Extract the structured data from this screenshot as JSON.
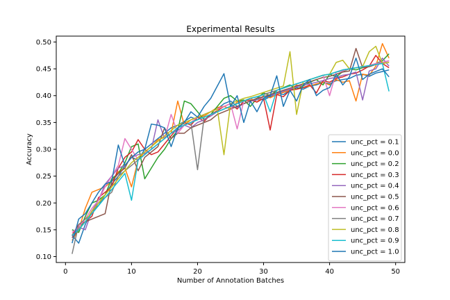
{
  "chart_data": {
    "type": "line",
    "title": "Experimental Results",
    "xlabel": "Number of Annotation Batches",
    "ylabel": "Accuracy",
    "xlim": [
      -1.4,
      51.4
    ],
    "ylim": [
      0.089,
      0.511
    ],
    "xticks": [
      0,
      10,
      20,
      30,
      40,
      50
    ],
    "yticks": [
      0.1,
      0.15,
      0.2,
      0.25,
      0.3,
      0.35,
      0.4,
      0.45,
      0.5
    ],
    "ytick_labels": [
      "0.10",
      "0.15",
      "0.20",
      "0.25",
      "0.30",
      "0.35",
      "0.40",
      "0.45",
      "0.50"
    ],
    "grid": false,
    "legend_position": "lower-right",
    "x": [
      1,
      2,
      3,
      4,
      5,
      6,
      7,
      8,
      9,
      10,
      11,
      12,
      13,
      14,
      15,
      16,
      17,
      18,
      19,
      20,
      21,
      22,
      23,
      24,
      25,
      26,
      27,
      28,
      29,
      30,
      31,
      32,
      33,
      34,
      35,
      36,
      37,
      38,
      39,
      40,
      41,
      42,
      43,
      44,
      45,
      46,
      47,
      48,
      49
    ],
    "series": [
      {
        "name": "unc_pct = 0.1",
        "color": "#1f77b4",
        "values": [
          0.14,
          0.125,
          0.16,
          0.185,
          0.195,
          0.215,
          0.235,
          0.25,
          0.27,
          0.285,
          0.28,
          0.3,
          0.31,
          0.32,
          0.33,
          0.34,
          0.345,
          0.352,
          0.36,
          0.355,
          0.365,
          0.37,
          0.375,
          0.385,
          0.39,
          0.38,
          0.385,
          0.39,
          0.395,
          0.392,
          0.398,
          0.405,
          0.402,
          0.41,
          0.415,
          0.412,
          0.418,
          0.42,
          0.425,
          0.422,
          0.428,
          0.43,
          0.432,
          0.438,
          0.44,
          0.436,
          0.442,
          0.445,
          0.448
        ]
      },
      {
        "name": "unc_pct = 0.0",
        "color": "#ff7f0e",
        "values": [
          0.13,
          0.15,
          0.19,
          0.22,
          0.225,
          0.23,
          0.24,
          0.258,
          0.265,
          0.23,
          0.28,
          0.295,
          0.305,
          0.318,
          0.322,
          0.33,
          0.39,
          0.345,
          0.355,
          0.36,
          0.362,
          0.37,
          0.378,
          0.38,
          0.375,
          0.388,
          0.39,
          0.395,
          0.388,
          0.4,
          0.396,
          0.402,
          0.406,
          0.41,
          0.42,
          0.415,
          0.418,
          0.422,
          0.425,
          0.42,
          0.43,
          0.425,
          0.428,
          0.39,
          0.44,
          0.438,
          0.455,
          0.497,
          0.47
        ]
      },
      {
        "name": "unc_pct = 0.2",
        "color": "#2ca02c",
        "values": [
          0.15,
          0.145,
          0.175,
          0.2,
          0.205,
          0.215,
          0.245,
          0.255,
          0.275,
          0.305,
          0.31,
          0.245,
          0.265,
          0.285,
          0.3,
          0.32,
          0.335,
          0.39,
          0.385,
          0.37,
          0.355,
          0.365,
          0.38,
          0.395,
          0.4,
          0.39,
          0.392,
          0.38,
          0.395,
          0.405,
          0.4,
          0.41,
          0.415,
          0.42,
          0.412,
          0.418,
          0.425,
          0.43,
          0.42,
          0.44,
          0.435,
          0.445,
          0.45,
          0.448,
          0.452,
          0.455,
          0.46,
          0.465,
          0.478
        ]
      },
      {
        "name": "unc_pct = 0.3",
        "color": "#d62728",
        "values": [
          0.14,
          0.16,
          0.165,
          0.175,
          0.21,
          0.22,
          0.23,
          0.265,
          0.285,
          0.295,
          0.318,
          0.3,
          0.29,
          0.295,
          0.31,
          0.325,
          0.34,
          0.35,
          0.345,
          0.36,
          0.352,
          0.365,
          0.372,
          0.38,
          0.385,
          0.375,
          0.39,
          0.392,
          0.388,
          0.395,
          0.336,
          0.402,
          0.398,
          0.41,
          0.412,
          0.415,
          0.42,
          0.405,
          0.428,
          0.425,
          0.432,
          0.435,
          0.44,
          0.442,
          0.448,
          0.455,
          0.475,
          0.46,
          0.452
        ]
      },
      {
        "name": "unc_pct = 0.4",
        "color": "#9467bd",
        "values": [
          0.135,
          0.155,
          0.15,
          0.185,
          0.205,
          0.235,
          0.25,
          0.265,
          0.27,
          0.285,
          0.29,
          0.292,
          0.3,
          0.355,
          0.32,
          0.33,
          0.335,
          0.345,
          0.34,
          0.35,
          0.355,
          0.362,
          0.37,
          0.375,
          0.38,
          0.378,
          0.385,
          0.39,
          0.392,
          0.398,
          0.4,
          0.404,
          0.408,
          0.412,
          0.416,
          0.42,
          0.422,
          0.425,
          0.428,
          0.432,
          0.434,
          0.438,
          0.44,
          0.444,
          0.392,
          0.446,
          0.45,
          0.47,
          0.455
        ]
      },
      {
        "name": "unc_pct = 0.5",
        "color": "#8c564b",
        "values": [
          0.135,
          0.15,
          0.165,
          0.17,
          0.175,
          0.18,
          0.24,
          0.255,
          0.265,
          0.29,
          0.26,
          0.285,
          0.295,
          0.305,
          0.34,
          0.32,
          0.33,
          0.33,
          0.34,
          0.345,
          0.35,
          0.355,
          0.365,
          0.37,
          0.375,
          0.38,
          0.385,
          0.39,
          0.395,
          0.398,
          0.402,
          0.406,
          0.41,
          0.414,
          0.418,
          0.422,
          0.426,
          0.43,
          0.434,
          0.436,
          0.44,
          0.444,
          0.446,
          0.488,
          0.452,
          0.454,
          0.458,
          0.462,
          0.465
        ]
      },
      {
        "name": "unc_pct = 0.6",
        "color": "#e377c2",
        "values": [
          0.145,
          0.155,
          0.17,
          0.19,
          0.205,
          0.23,
          0.25,
          0.27,
          0.32,
          0.3,
          0.28,
          0.29,
          0.3,
          0.31,
          0.32,
          0.365,
          0.33,
          0.345,
          0.35,
          0.36,
          0.365,
          0.37,
          0.375,
          0.38,
          0.385,
          0.338,
          0.39,
          0.395,
          0.398,
          0.402,
          0.406,
          0.41,
          0.414,
          0.418,
          0.422,
          0.426,
          0.43,
          0.434,
          0.438,
          0.4,
          0.444,
          0.446,
          0.45,
          0.452,
          0.454,
          0.456,
          0.46,
          0.462,
          0.465
        ]
      },
      {
        "name": "unc_pct = 0.7",
        "color": "#7f7f7f",
        "values": [
          0.105,
          0.16,
          0.17,
          0.18,
          0.2,
          0.21,
          0.22,
          0.25,
          0.26,
          0.27,
          0.28,
          0.29,
          0.3,
          0.31,
          0.32,
          0.33,
          0.34,
          0.345,
          0.35,
          0.262,
          0.36,
          0.365,
          0.37,
          0.375,
          0.38,
          0.385,
          0.39,
          0.395,
          0.398,
          0.402,
          0.406,
          0.41,
          0.414,
          0.418,
          0.422,
          0.426,
          0.43,
          0.434,
          0.438,
          0.44,
          0.444,
          0.448,
          0.45,
          0.452,
          0.454,
          0.456,
          0.458,
          0.46,
          0.462
        ]
      },
      {
        "name": "unc_pct = 0.8",
        "color": "#bcbd22",
        "values": [
          0.14,
          0.15,
          0.165,
          0.185,
          0.2,
          0.215,
          0.23,
          0.245,
          0.26,
          0.275,
          0.285,
          0.295,
          0.305,
          0.315,
          0.325,
          0.335,
          0.345,
          0.35,
          0.355,
          0.36,
          0.365,
          0.37,
          0.375,
          0.29,
          0.385,
          0.39,
          0.395,
          0.398,
          0.402,
          0.406,
          0.41,
          0.414,
          0.418,
          0.482,
          0.365,
          0.426,
          0.43,
          0.434,
          0.438,
          0.44,
          0.462,
          0.466,
          0.45,
          0.452,
          0.454,
          0.482,
          0.492,
          0.46,
          0.462
        ]
      },
      {
        "name": "unc_pct = 0.9",
        "color": "#17becf",
        "values": [
          0.14,
          0.15,
          0.165,
          0.18,
          0.195,
          0.21,
          0.225,
          0.24,
          0.255,
          0.205,
          0.28,
          0.29,
          0.3,
          0.31,
          0.32,
          0.33,
          0.34,
          0.345,
          0.35,
          0.355,
          0.36,
          0.365,
          0.37,
          0.375,
          0.38,
          0.385,
          0.39,
          0.395,
          0.398,
          0.402,
          0.37,
          0.41,
          0.414,
          0.418,
          0.422,
          0.426,
          0.43,
          0.434,
          0.438,
          0.44,
          0.444,
          0.448,
          0.45,
          0.452,
          0.454,
          0.456,
          0.458,
          0.46,
          0.408
        ]
      },
      {
        "name": "unc_pct = 1.0",
        "color": "#1f77b4",
        "values": [
          0.125,
          0.17,
          0.18,
          0.2,
          0.22,
          0.235,
          0.24,
          0.308,
          0.27,
          0.285,
          0.295,
          0.3,
          0.347,
          0.345,
          0.34,
          0.305,
          0.34,
          0.35,
          0.37,
          0.36,
          0.38,
          0.395,
          0.418,
          0.441,
          0.38,
          0.4,
          0.35,
          0.39,
          0.37,
          0.395,
          0.4,
          0.437,
          0.38,
          0.41,
          0.39,
          0.42,
          0.43,
          0.4,
          0.41,
          0.415,
          0.44,
          0.42,
          0.435,
          0.47,
          0.43,
          0.44,
          0.445,
          0.45,
          0.435
        ]
      }
    ]
  }
}
